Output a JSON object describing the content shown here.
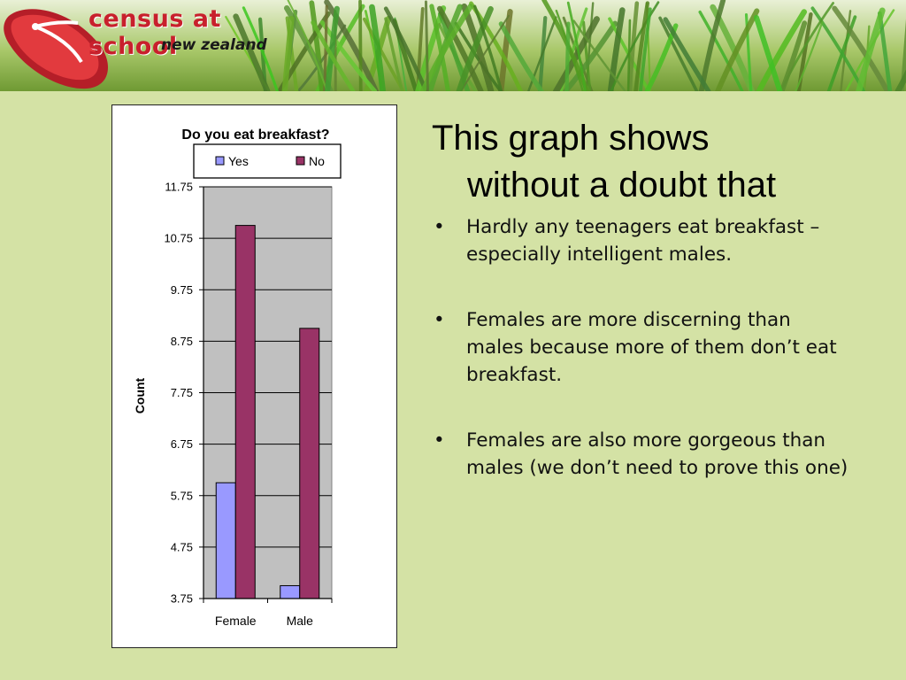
{
  "banner": {
    "logo_line1": "census at school",
    "logo_line2": "new zealand",
    "colors": {
      "logo_red": "#c8202c",
      "grass": "#7fae3f",
      "background": "#d4e2a5"
    }
  },
  "heading": {
    "line1": "This graph shows",
    "line2": "without a doubt that"
  },
  "bullets": [
    {
      "marker": "•",
      "text": "Hardly any teenagers eat breakfast – especially intelligent males."
    },
    {
      "marker": "•",
      "text": "Females are more discerning than males because more of them don’t eat breakfast."
    },
    {
      "marker": "•",
      "text": "Females are also more gorgeous than males (we don’t need to prove this one)"
    }
  ],
  "chart_data": {
    "type": "bar",
    "title": "Do you eat breakfast?",
    "xlabel": "",
    "ylabel": "Count",
    "categories": [
      "Female",
      "Male"
    ],
    "series": [
      {
        "name": "Yes",
        "color": "#9999ff",
        "values": [
          6,
          4
        ]
      },
      {
        "name": "No",
        "color": "#993366",
        "values": [
          11,
          9
        ]
      }
    ],
    "ylim": [
      3.75,
      11.75
    ],
    "yticks": [
      "3.75",
      "4.75",
      "5.75",
      "6.75",
      "7.75",
      "8.75",
      "9.75",
      "10.75",
      "11.75"
    ],
    "grid": true,
    "plot_background": "#c0c0c0",
    "legend_position": "top"
  }
}
